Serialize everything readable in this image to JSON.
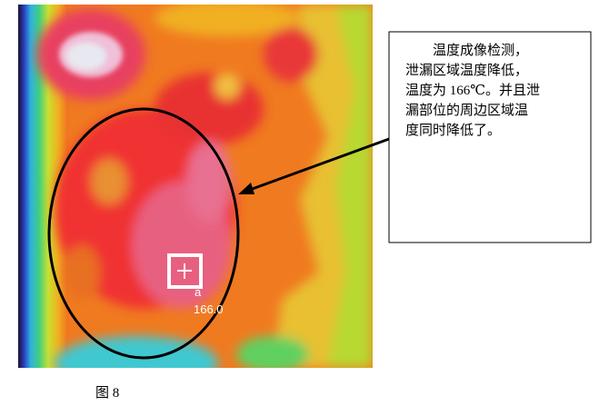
{
  "callout": {
    "lines": [
      "温度成像检测，",
      "泄漏区域温度降低，",
      "温度为 166℃。并且泄",
      "漏部位的周边区域温",
      "度同时降低了。"
    ]
  },
  "marker": {
    "label": "a",
    "reading": "166.0"
  },
  "caption": "图 8"
}
